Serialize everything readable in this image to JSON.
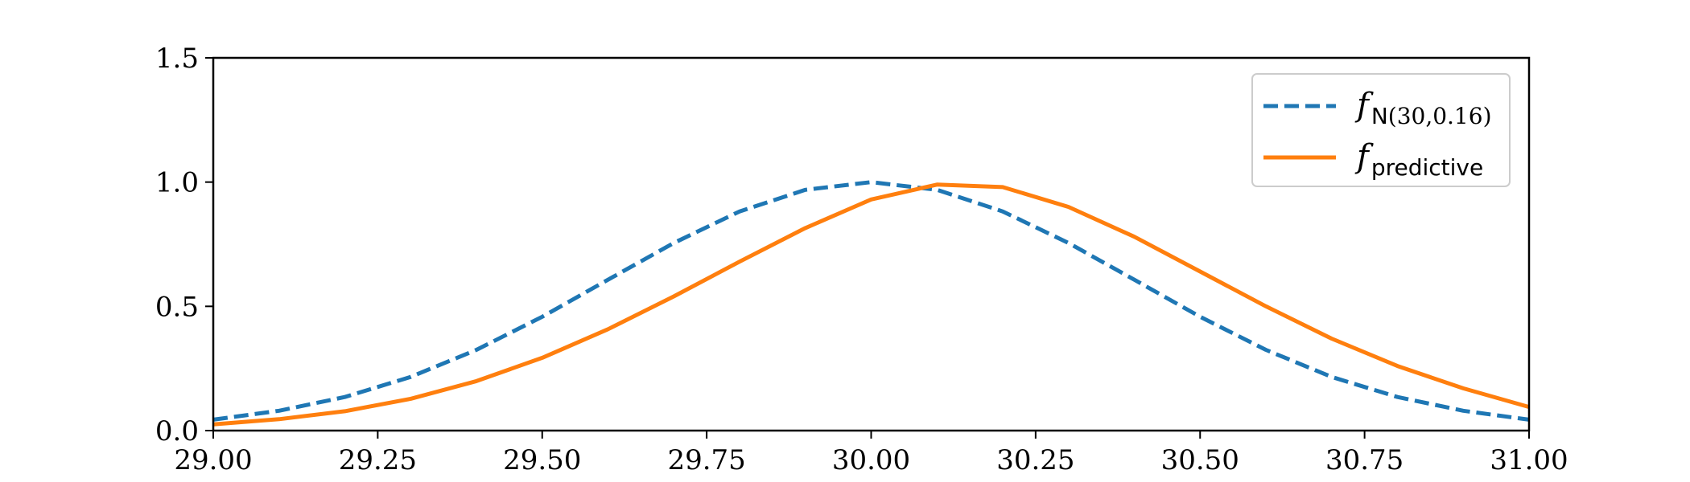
{
  "chart_data": {
    "type": "line",
    "title": "",
    "xlabel": "",
    "ylabel": "",
    "xlim": [
      29.0,
      31.0
    ],
    "ylim": [
      0.0,
      1.5
    ],
    "xticks": [
      29.0,
      29.25,
      29.5,
      29.75,
      30.0,
      30.25,
      30.5,
      30.75,
      31.0
    ],
    "xtick_labels": [
      "29.00",
      "29.25",
      "29.50",
      "29.75",
      "30.00",
      "30.25",
      "30.50",
      "30.75",
      "31.00"
    ],
    "yticks": [
      0.0,
      0.5,
      1.0,
      1.5
    ],
    "ytick_labels": [
      "0.0",
      "0.5",
      "1.0",
      "1.5"
    ],
    "grid": false,
    "legend_position": "top-right",
    "series": [
      {
        "name": "f_N(30,0.16)",
        "legend_main": "f",
        "legend_sub": "N",
        "legend_sub_extra": "(30,0.16)",
        "color": "#1f77b4",
        "style": "dashed",
        "x": [
          29.0,
          29.1,
          29.2,
          29.3,
          29.4,
          29.5,
          29.6,
          29.7,
          29.8,
          29.9,
          30.0,
          30.1,
          30.2,
          30.3,
          30.4,
          30.5,
          30.6,
          30.7,
          30.8,
          30.9,
          31.0
        ],
        "y": [
          0.044,
          0.08,
          0.135,
          0.216,
          0.325,
          0.458,
          0.607,
          0.755,
          0.882,
          0.969,
          1.0,
          0.969,
          0.882,
          0.755,
          0.607,
          0.458,
          0.325,
          0.216,
          0.135,
          0.08,
          0.044
        ]
      },
      {
        "name": "f_predictive",
        "legend_main": "f",
        "legend_sub": "predictive",
        "legend_sub_extra": "",
        "color": "#ff7f0e",
        "style": "solid",
        "x": [
          29.0,
          29.1,
          29.2,
          29.3,
          29.4,
          29.5,
          29.6,
          29.7,
          29.8,
          29.9,
          30.0,
          30.1,
          30.2,
          30.3,
          30.4,
          30.5,
          30.6,
          30.7,
          30.8,
          30.9,
          31.0
        ],
        "y": [
          0.025,
          0.046,
          0.078,
          0.128,
          0.199,
          0.293,
          0.408,
          0.54,
          0.68,
          0.815,
          0.93,
          0.99,
          0.98,
          0.9,
          0.78,
          0.64,
          0.5,
          0.37,
          0.26,
          0.17,
          0.095
        ]
      }
    ]
  }
}
